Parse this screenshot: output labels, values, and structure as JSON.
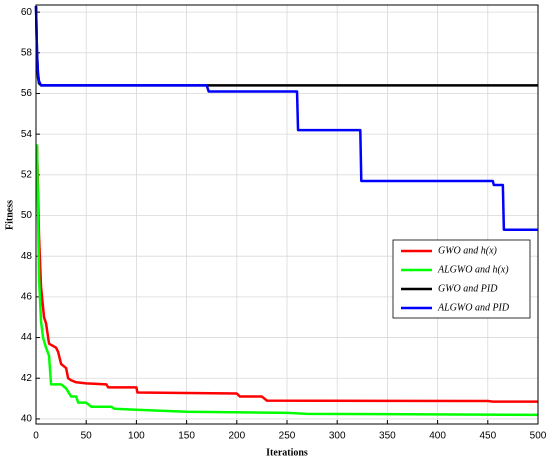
{
  "chart_data": {
    "type": "line",
    "x_label": "Iterations",
    "y_label": "Fitness",
    "xlim": [
      0,
      500
    ],
    "ylim": [
      39.75,
      60.35
    ],
    "xticks": [
      0,
      50,
      100,
      150,
      200,
      250,
      300,
      350,
      400,
      450,
      500
    ],
    "yticks": [
      40,
      42,
      44,
      46,
      48,
      50,
      52,
      54,
      56,
      58,
      60
    ],
    "grid": true,
    "legend": "right",
    "series": [
      {
        "name": "GWO and h(x)",
        "color": "#ff0000",
        "x": [
          1,
          3,
          5,
          8,
          10,
          13,
          20,
          22,
          25,
          30,
          32,
          35,
          40,
          50,
          70,
          72,
          100,
          101,
          200,
          203,
          225,
          230,
          450,
          455,
          500
        ],
        "values": [
          53.4,
          49,
          46.5,
          45,
          44.7,
          43.7,
          43.5,
          43.3,
          42.7,
          42.5,
          42,
          41.9,
          41.8,
          41.75,
          41.7,
          41.55,
          41.55,
          41.3,
          41.25,
          41.1,
          41.1,
          40.9,
          40.88,
          40.85,
          40.85
        ]
      },
      {
        "name": "ALGWO and h(x)",
        "color": "#00ff00",
        "x": [
          1,
          3,
          5,
          7,
          10,
          13,
          15,
          25,
          30,
          35,
          40,
          42,
          50,
          55,
          75,
          78,
          100,
          150,
          250,
          270,
          500
        ],
        "values": [
          53.5,
          47,
          44.8,
          44,
          43.5,
          43.1,
          41.7,
          41.7,
          41.5,
          41.1,
          41.1,
          40.8,
          40.8,
          40.6,
          40.6,
          40.5,
          40.45,
          40.35,
          40.3,
          40.25,
          40.2
        ]
      },
      {
        "name": "GWO and PID",
        "color": "#000000",
        "x": [
          0,
          1,
          2,
          3,
          5,
          500
        ],
        "values": [
          60.3,
          58,
          56.8,
          56.5,
          56.4,
          56.4
        ]
      },
      {
        "name": "ALGWO and PID",
        "color": "#0000ff",
        "x": [
          0,
          1,
          2,
          3,
          5,
          170,
          172,
          260,
          261,
          323,
          324,
          455,
          456,
          465,
          466,
          500
        ],
        "values": [
          60.3,
          58,
          57,
          56.6,
          56.4,
          56.4,
          56.1,
          56.1,
          54.2,
          54.2,
          51.7,
          51.7,
          51.5,
          51.5,
          49.3,
          49.3
        ]
      }
    ]
  }
}
